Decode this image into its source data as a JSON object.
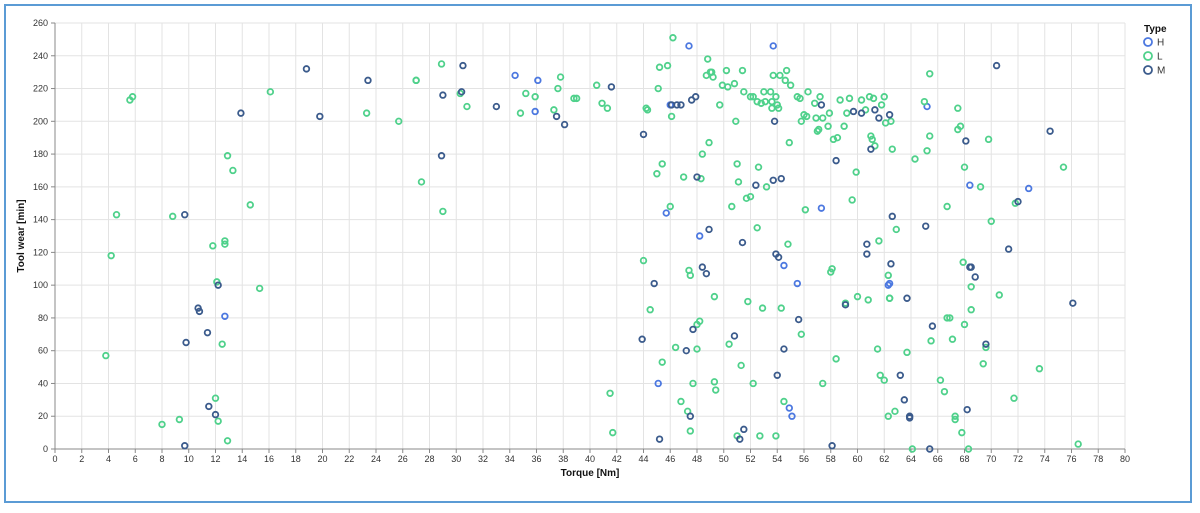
{
  "chart_data": {
    "type": "scatter",
    "xlabel": "Torque [Nm]",
    "ylabel": "Tool wear [min]",
    "xlim": [
      0,
      80
    ],
    "ylim": [
      0,
      260
    ],
    "x_ticks": [
      0,
      2,
      4,
      6,
      8,
      10,
      12,
      14,
      16,
      18,
      20,
      22,
      24,
      26,
      28,
      30,
      32,
      34,
      36,
      38,
      40,
      42,
      44,
      46,
      48,
      50,
      52,
      54,
      56,
      58,
      60,
      62,
      64,
      66,
      68,
      70,
      72,
      74,
      76,
      78,
      80
    ],
    "y_ticks": [
      0,
      20,
      40,
      60,
      80,
      100,
      120,
      140,
      160,
      180,
      200,
      220,
      240,
      260
    ],
    "grid": true,
    "legend": {
      "title": "Type",
      "position": "top-right"
    },
    "series": [
      {
        "name": "H",
        "color": "#4c78e0",
        "points": [
          [
            12.7,
            81
          ],
          [
            34.4,
            228
          ],
          [
            35.9,
            206
          ],
          [
            36.1,
            225
          ],
          [
            45.1,
            40
          ],
          [
            45.7,
            144
          ],
          [
            46.0,
            210
          ],
          [
            47.4,
            246
          ],
          [
            48.2,
            130
          ],
          [
            53.7,
            246
          ],
          [
            54.5,
            112
          ],
          [
            54.9,
            25
          ],
          [
            55.1,
            20
          ],
          [
            55.5,
            101
          ],
          [
            57.3,
            147
          ],
          [
            62.3,
            100
          ],
          [
            62.4,
            101
          ],
          [
            68.4,
            161
          ],
          [
            72.8,
            159
          ],
          [
            65.2,
            209
          ]
        ]
      },
      {
        "name": "L",
        "color": "#4fd18b",
        "points": [
          [
            3.8,
            57
          ],
          [
            4.2,
            118
          ],
          [
            4.6,
            143
          ],
          [
            5.6,
            213
          ],
          [
            5.8,
            215
          ],
          [
            8.0,
            15
          ],
          [
            8.8,
            142
          ],
          [
            9.3,
            18
          ],
          [
            11.8,
            124
          ],
          [
            12.1,
            102
          ],
          [
            12.0,
            31
          ],
          [
            12.2,
            17
          ],
          [
            12.5,
            64
          ],
          [
            12.7,
            125
          ],
          [
            12.7,
            127
          ],
          [
            12.9,
            179
          ],
          [
            12.9,
            5
          ],
          [
            13.3,
            170
          ],
          [
            14.6,
            149
          ],
          [
            15.3,
            98
          ],
          [
            16.1,
            218
          ],
          [
            23.3,
            205
          ],
          [
            25.7,
            200
          ],
          [
            27.0,
            225
          ],
          [
            27.4,
            163
          ],
          [
            28.9,
            235
          ],
          [
            29.0,
            145
          ],
          [
            30.3,
            217
          ],
          [
            30.8,
            209
          ],
          [
            34.8,
            205
          ],
          [
            35.2,
            217
          ],
          [
            35.9,
            215
          ],
          [
            37.3,
            207
          ],
          [
            37.6,
            220
          ],
          [
            37.8,
            227
          ],
          [
            38.8,
            214
          ],
          [
            39.0,
            214
          ],
          [
            40.5,
            222
          ],
          [
            40.9,
            211
          ],
          [
            41.3,
            208
          ],
          [
            41.5,
            34
          ],
          [
            41.7,
            10
          ],
          [
            44.0,
            115
          ],
          [
            44.2,
            208
          ],
          [
            44.3,
            207
          ],
          [
            44.5,
            85
          ],
          [
            45.0,
            168
          ],
          [
            45.1,
            220
          ],
          [
            45.2,
            233
          ],
          [
            45.4,
            174
          ],
          [
            45.4,
            53
          ],
          [
            45.8,
            234
          ],
          [
            46.0,
            148
          ],
          [
            46.1,
            203
          ],
          [
            46.2,
            251
          ],
          [
            46.4,
            62
          ],
          [
            46.8,
            29
          ],
          [
            47.0,
            166
          ],
          [
            47.3,
            23
          ],
          [
            47.4,
            109
          ],
          [
            47.5,
            106
          ],
          [
            47.5,
            11
          ],
          [
            47.7,
            40
          ],
          [
            48.0,
            61
          ],
          [
            48.0,
            76
          ],
          [
            48.2,
            78
          ],
          [
            48.3,
            165
          ],
          [
            48.4,
            180
          ],
          [
            48.7,
            228
          ],
          [
            48.8,
            238
          ],
          [
            48.9,
            187
          ],
          [
            49.0,
            230
          ],
          [
            49.1,
            230
          ],
          [
            49.2,
            227
          ],
          [
            49.3,
            93
          ],
          [
            49.4,
            36
          ],
          [
            49.3,
            41
          ],
          [
            49.7,
            210
          ],
          [
            49.9,
            222
          ],
          [
            50.2,
            231
          ],
          [
            50.3,
            221
          ],
          [
            50.4,
            64
          ],
          [
            50.6,
            148
          ],
          [
            50.8,
            223
          ],
          [
            50.9,
            200
          ],
          [
            51.0,
            174
          ],
          [
            51.0,
            8
          ],
          [
            51.1,
            163
          ],
          [
            51.3,
            51
          ],
          [
            51.4,
            231
          ],
          [
            51.5,
            218
          ],
          [
            51.7,
            153
          ],
          [
            51.8,
            90
          ],
          [
            52.0,
            154
          ],
          [
            52.0,
            215
          ],
          [
            52.2,
            215
          ],
          [
            52.2,
            40
          ],
          [
            52.5,
            212
          ],
          [
            52.5,
            135
          ],
          [
            52.6,
            172
          ],
          [
            52.7,
            8
          ],
          [
            52.8,
            211
          ],
          [
            52.9,
            86
          ],
          [
            53.0,
            218
          ],
          [
            53.1,
            212
          ],
          [
            53.2,
            160
          ],
          [
            53.5,
            218
          ],
          [
            53.6,
            212
          ],
          [
            53.6,
            208
          ],
          [
            53.7,
            228
          ],
          [
            53.9,
            215
          ],
          [
            53.9,
            8
          ],
          [
            54.0,
            210
          ],
          [
            54.1,
            208
          ],
          [
            54.2,
            228
          ],
          [
            54.3,
            86
          ],
          [
            54.5,
            29
          ],
          [
            54.6,
            225
          ],
          [
            54.7,
            231
          ],
          [
            54.8,
            125
          ],
          [
            54.9,
            187
          ],
          [
            55.0,
            222
          ],
          [
            55.5,
            215
          ],
          [
            55.7,
            214
          ],
          [
            55.8,
            70
          ],
          [
            55.8,
            200
          ],
          [
            56.0,
            204
          ],
          [
            56.1,
            146
          ],
          [
            56.2,
            203
          ],
          [
            56.3,
            218
          ],
          [
            56.8,
            211
          ],
          [
            56.9,
            202
          ],
          [
            57.0,
            194
          ],
          [
            57.1,
            195
          ],
          [
            57.2,
            215
          ],
          [
            57.4,
            40
          ],
          [
            57.4,
            202
          ],
          [
            57.8,
            197
          ],
          [
            57.9,
            205
          ],
          [
            58.0,
            108
          ],
          [
            58.1,
            110
          ],
          [
            58.2,
            189
          ],
          [
            58.4,
            55
          ],
          [
            58.5,
            190
          ],
          [
            58.7,
            213
          ],
          [
            59.0,
            197
          ],
          [
            59.1,
            89
          ],
          [
            59.2,
            205
          ],
          [
            59.4,
            214
          ],
          [
            59.6,
            152
          ],
          [
            59.9,
            169
          ],
          [
            60.0,
            93
          ],
          [
            60.3,
            213
          ],
          [
            60.6,
            207
          ],
          [
            60.8,
            91
          ],
          [
            60.9,
            215
          ],
          [
            61.0,
            191
          ],
          [
            61.1,
            189
          ],
          [
            61.2,
            214
          ],
          [
            61.3,
            185
          ],
          [
            61.5,
            61
          ],
          [
            61.6,
            127
          ],
          [
            61.7,
            45
          ],
          [
            61.8,
            210
          ],
          [
            62.0,
            215
          ],
          [
            62.0,
            42
          ],
          [
            62.1,
            199
          ],
          [
            62.3,
            20
          ],
          [
            62.3,
            106
          ],
          [
            62.4,
            92
          ],
          [
            62.4,
            92
          ],
          [
            62.5,
            200
          ],
          [
            62.6,
            183
          ],
          [
            62.8,
            23
          ],
          [
            62.9,
            134
          ],
          [
            63.7,
            59
          ],
          [
            64.1,
            0
          ],
          [
            64.3,
            177
          ],
          [
            65.0,
            212
          ],
          [
            65.2,
            182
          ],
          [
            65.4,
            191
          ],
          [
            65.4,
            229
          ],
          [
            65.5,
            66
          ],
          [
            66.2,
            42
          ],
          [
            66.5,
            35
          ],
          [
            66.7,
            148
          ],
          [
            66.7,
            80
          ],
          [
            66.9,
            80
          ],
          [
            67.1,
            67
          ],
          [
            67.3,
            18
          ],
          [
            67.3,
            20
          ],
          [
            67.5,
            195
          ],
          [
            67.5,
            208
          ],
          [
            67.7,
            197
          ],
          [
            67.8,
            10
          ],
          [
            67.9,
            114
          ],
          [
            68.0,
            172
          ],
          [
            68.0,
            76
          ],
          [
            68.3,
            0
          ],
          [
            68.5,
            99
          ],
          [
            68.5,
            85
          ],
          [
            69.2,
            160
          ],
          [
            69.4,
            52
          ],
          [
            69.6,
            62
          ],
          [
            69.8,
            189
          ],
          [
            70.0,
            139
          ],
          [
            70.6,
            94
          ],
          [
            71.7,
            31
          ],
          [
            71.8,
            150
          ],
          [
            73.6,
            49
          ],
          [
            75.4,
            172
          ],
          [
            76.5,
            3
          ],
          [
            27.0,
            225
          ]
        ]
      },
      {
        "name": "M",
        "color": "#3b5b8c",
        "points": [
          [
            9.7,
            2
          ],
          [
            9.8,
            65
          ],
          [
            9.7,
            143
          ],
          [
            10.7,
            86
          ],
          [
            10.8,
            84
          ],
          [
            11.4,
            71
          ],
          [
            11.5,
            26
          ],
          [
            12.0,
            21
          ],
          [
            12.2,
            100
          ],
          [
            13.9,
            205
          ],
          [
            18.8,
            232
          ],
          [
            19.8,
            203
          ],
          [
            23.4,
            225
          ],
          [
            28.9,
            179
          ],
          [
            29.0,
            216
          ],
          [
            30.4,
            218
          ],
          [
            30.5,
            234
          ],
          [
            33.0,
            209
          ],
          [
            37.5,
            203
          ],
          [
            38.1,
            198
          ],
          [
            41.6,
            221
          ],
          [
            43.9,
            67
          ],
          [
            44.0,
            192
          ],
          [
            44.8,
            101
          ],
          [
            45.2,
            6
          ],
          [
            46.1,
            210
          ],
          [
            46.5,
            210
          ],
          [
            46.8,
            210
          ],
          [
            47.2,
            60
          ],
          [
            47.5,
            20
          ],
          [
            47.6,
            213
          ],
          [
            47.7,
            73
          ],
          [
            47.9,
            215
          ],
          [
            48.0,
            166
          ],
          [
            48.4,
            111
          ],
          [
            48.7,
            107
          ],
          [
            48.9,
            134
          ],
          [
            50.8,
            69
          ],
          [
            51.2,
            6
          ],
          [
            51.4,
            126
          ],
          [
            51.5,
            12
          ],
          [
            52.4,
            161
          ],
          [
            53.7,
            164
          ],
          [
            53.8,
            200
          ],
          [
            53.9,
            119
          ],
          [
            54.0,
            45
          ],
          [
            54.1,
            117
          ],
          [
            54.3,
            165
          ],
          [
            54.5,
            61
          ],
          [
            55.6,
            79
          ],
          [
            57.3,
            210
          ],
          [
            58.1,
            2
          ],
          [
            58.4,
            176
          ],
          [
            59.1,
            88
          ],
          [
            59.7,
            206
          ],
          [
            60.3,
            205
          ],
          [
            60.7,
            125
          ],
          [
            60.7,
            119
          ],
          [
            61.0,
            183
          ],
          [
            61.3,
            207
          ],
          [
            61.6,
            202
          ],
          [
            62.4,
            204
          ],
          [
            62.5,
            113
          ],
          [
            62.6,
            142
          ],
          [
            63.2,
            45
          ],
          [
            63.5,
            30
          ],
          [
            63.7,
            92
          ],
          [
            63.9,
            20
          ],
          [
            63.9,
            19
          ],
          [
            65.1,
            136
          ],
          [
            65.4,
            0
          ],
          [
            65.6,
            75
          ],
          [
            68.1,
            188
          ],
          [
            68.2,
            24
          ],
          [
            68.4,
            111
          ],
          [
            68.5,
            111
          ],
          [
            68.8,
            105
          ],
          [
            69.6,
            64
          ],
          [
            70.4,
            234
          ],
          [
            71.3,
            122
          ],
          [
            72.0,
            151
          ],
          [
            74.4,
            194
          ],
          [
            76.1,
            89
          ]
        ]
      }
    ]
  }
}
